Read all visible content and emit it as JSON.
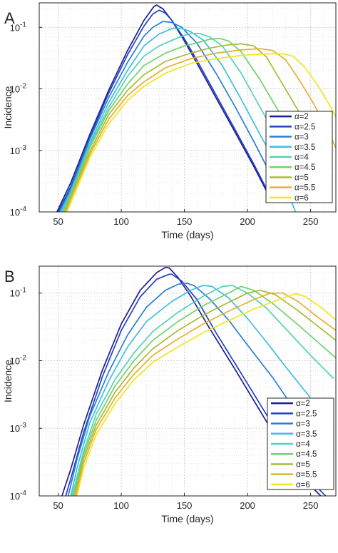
{
  "chart_data": [
    {
      "type": "line",
      "panel_label": "A",
      "xlabel": "Time (days)",
      "ylabel": "Incidence",
      "xlim": [
        35,
        270
      ],
      "ylim": [
        0.0001,
        0.25
      ],
      "yscale": "log",
      "grid": true,
      "minor_grid": true,
      "legend_position": "right",
      "x_ticks": [
        50,
        100,
        150,
        200,
        250
      ],
      "y_ticks": [
        {
          "value": 0.0001,
          "base": "10",
          "exp": "-4"
        },
        {
          "value": 0.001,
          "base": "10",
          "exp": "-3"
        },
        {
          "value": 0.01,
          "base": "10",
          "exp": "-2"
        },
        {
          "value": 0.1,
          "base": "10",
          "exp": "-1"
        }
      ],
      "series": [
        {
          "name": "α=2",
          "color": "#1f1f8f",
          "x": [
            49,
            60,
            75,
            90,
            105,
            118,
            126,
            128,
            133,
            140,
            150,
            160,
            175,
            190,
            205,
            215
          ],
          "y": [
            0.0001,
            0.0003,
            0.0018,
            0.0095,
            0.042,
            0.13,
            0.22,
            0.23,
            0.2,
            0.13,
            0.06,
            0.026,
            0.0072,
            0.002,
            0.00055,
            0.00022
          ]
        },
        {
          "name": "α=2.5",
          "color": "#2240c8",
          "x": [
            50,
            60,
            75,
            90,
            105,
            118,
            125,
            130,
            135,
            140,
            150,
            160,
            175,
            190,
            205,
            220
          ],
          "y": [
            0.0001,
            0.00026,
            0.0016,
            0.0085,
            0.036,
            0.105,
            0.165,
            0.19,
            0.17,
            0.13,
            0.065,
            0.029,
            0.008,
            0.0022,
            0.0006,
            0.00015
          ]
        },
        {
          "name": "α=3",
          "color": "#2a7ed8",
          "x": [
            51,
            60,
            75,
            90,
            105,
            118,
            125,
            133,
            140,
            148,
            160,
            175,
            190,
            205,
            220,
            228
          ],
          "y": [
            0.0001,
            0.00024,
            0.0015,
            0.0072,
            0.027,
            0.072,
            0.1,
            0.125,
            0.12,
            0.1,
            0.055,
            0.018,
            0.0052,
            0.0014,
            0.00035,
            0.0002
          ]
        },
        {
          "name": "α=3.5",
          "color": "#3fbde0",
          "x": [
            52,
            60,
            75,
            90,
            105,
            118,
            130,
            140,
            148,
            155,
            165,
            180,
            195,
            210,
            225,
            238
          ],
          "y": [
            0.0001,
            0.00022,
            0.0013,
            0.006,
            0.02,
            0.05,
            0.078,
            0.095,
            0.096,
            0.085,
            0.062,
            0.024,
            0.0068,
            0.0018,
            0.0005,
            0.0001
          ]
        },
        {
          "name": "α=4",
          "color": "#52d2b8",
          "x": [
            53,
            60,
            75,
            90,
            105,
            118,
            130,
            145,
            155,
            162,
            170,
            180,
            195,
            210,
            225,
            245
          ],
          "y": [
            0.0001,
            0.0002,
            0.0012,
            0.005,
            0.016,
            0.034,
            0.05,
            0.068,
            0.08,
            0.079,
            0.07,
            0.05,
            0.018,
            0.005,
            0.0014,
            0.0002
          ]
        },
        {
          "name": "α=4.5",
          "color": "#6ed36a",
          "x": [
            54,
            60,
            75,
            90,
            105,
            118,
            135,
            150,
            160,
            170,
            178,
            185,
            195,
            210,
            225,
            245,
            255
          ],
          "y": [
            0.0001,
            0.00019,
            0.0011,
            0.0044,
            0.012,
            0.024,
            0.038,
            0.05,
            0.056,
            0.064,
            0.066,
            0.06,
            0.04,
            0.014,
            0.0042,
            0.0007,
            0.0002
          ]
        },
        {
          "name": "α=5",
          "color": "#a9ba35",
          "x": [
            55,
            60,
            75,
            90,
            105,
            118,
            135,
            155,
            170,
            185,
            195,
            205,
            215,
            230,
            245,
            260
          ],
          "y": [
            0.0001,
            0.00018,
            0.00095,
            0.0038,
            0.0095,
            0.017,
            0.028,
            0.038,
            0.046,
            0.052,
            0.054,
            0.05,
            0.033,
            0.01,
            0.003,
            0.0006
          ]
        },
        {
          "name": "α=5.5",
          "color": "#e6b030",
          "x": [
            56,
            60,
            75,
            90,
            105,
            118,
            135,
            155,
            175,
            195,
            210,
            220,
            230,
            240,
            250,
            262,
            270
          ],
          "y": [
            0.0001,
            0.00016,
            0.00085,
            0.0032,
            0.0078,
            0.013,
            0.022,
            0.031,
            0.038,
            0.043,
            0.045,
            0.042,
            0.03,
            0.015,
            0.007,
            0.0025,
            0.0011
          ]
        },
        {
          "name": "α=6",
          "color": "#f2e61c",
          "x": [
            57,
            60,
            75,
            90,
            105,
            118,
            135,
            155,
            175,
            195,
            215,
            228,
            236,
            245,
            255,
            265,
            270
          ],
          "y": [
            0.0001,
            0.00014,
            0.00075,
            0.0027,
            0.0065,
            0.011,
            0.018,
            0.026,
            0.031,
            0.035,
            0.037,
            0.037,
            0.034,
            0.023,
            0.012,
            0.0055,
            0.0035
          ]
        }
      ]
    },
    {
      "type": "line",
      "panel_label": "B",
      "xlabel": "Time (days)",
      "ylabel": "Incidence",
      "xlim": [
        35,
        270
      ],
      "ylim": [
        0.0001,
        0.25
      ],
      "yscale": "log",
      "grid": true,
      "minor_grid": true,
      "legend_position": "bottom-right",
      "x_ticks": [
        50,
        100,
        150,
        200,
        250
      ],
      "y_ticks": [
        {
          "value": 0.0001,
          "base": "10",
          "exp": "-4"
        },
        {
          "value": 0.001,
          "base": "10",
          "exp": "-3"
        },
        {
          "value": 0.01,
          "base": "10",
          "exp": "-2"
        },
        {
          "value": 0.1,
          "base": "10",
          "exp": "-1"
        }
      ],
      "series": [
        {
          "name": "α=2",
          "color": "#1f1f8f",
          "x": [
            53,
            60,
            70,
            85,
            100,
            115,
            128,
            135,
            138,
            145,
            155,
            170,
            190,
            210,
            225,
            240,
            258
          ],
          "y": [
            0.0001,
            0.00025,
            0.0011,
            0.0072,
            0.035,
            0.11,
            0.2,
            0.24,
            0.235,
            0.17,
            0.09,
            0.03,
            0.0075,
            0.0018,
            0.00062,
            0.00022,
            0.0001
          ]
        },
        {
          "name": "α=2.5",
          "color": "#2240c8",
          "x": [
            56,
            60,
            70,
            85,
            100,
            115,
            128,
            138,
            140,
            148,
            160,
            175,
            195,
            215,
            230,
            248,
            262
          ],
          "y": [
            0.0001,
            0.00018,
            0.00085,
            0.0058,
            0.028,
            0.088,
            0.16,
            0.19,
            0.19,
            0.15,
            0.08,
            0.026,
            0.0065,
            0.0016,
            0.00055,
            0.00018,
            0.0001
          ]
        },
        {
          "name": "α=3",
          "color": "#2a7ed8",
          "x": [
            58,
            65,
            75,
            90,
            105,
            120,
            135,
            145,
            152,
            158,
            170,
            185,
            200,
            220,
            240,
            255
          ],
          "y": [
            0.0001,
            0.00035,
            0.0015,
            0.0068,
            0.024,
            0.062,
            0.11,
            0.135,
            0.14,
            0.128,
            0.082,
            0.04,
            0.017,
            0.0056,
            0.0016,
            0.0005
          ]
        },
        {
          "name": "α=3.5",
          "color": "#3fbde0",
          "x": [
            60,
            65,
            75,
            90,
            105,
            120,
            140,
            155,
            165,
            172,
            185,
            200,
            215,
            230,
            250,
            268
          ],
          "y": [
            0.0001,
            0.00026,
            0.0012,
            0.005,
            0.016,
            0.038,
            0.075,
            0.11,
            0.13,
            0.125,
            0.085,
            0.042,
            0.019,
            0.0082,
            0.0028,
            0.0012
          ]
        },
        {
          "name": "α=4",
          "color": "#52d2b8",
          "x": [
            61,
            70,
            80,
            95,
            110,
            125,
            145,
            165,
            180,
            188,
            200,
            215,
            230,
            250,
            268
          ],
          "y": [
            0.0001,
            0.00045,
            0.0016,
            0.0052,
            0.013,
            0.027,
            0.052,
            0.09,
            0.125,
            0.13,
            0.1,
            0.06,
            0.03,
            0.012,
            0.0055
          ]
        },
        {
          "name": "α=4.5",
          "color": "#6ed36a",
          "x": [
            62,
            70,
            80,
            95,
            110,
            125,
            145,
            165,
            185,
            195,
            205,
            220,
            240,
            260,
            270
          ],
          "y": [
            0.0001,
            0.0004,
            0.0013,
            0.0042,
            0.01,
            0.02,
            0.038,
            0.065,
            0.1,
            0.125,
            0.11,
            0.07,
            0.034,
            0.016,
            0.011
          ]
        },
        {
          "name": "α=5",
          "color": "#a9ba35",
          "x": [
            63,
            70,
            80,
            95,
            110,
            125,
            145,
            165,
            185,
            200,
            210,
            222,
            240,
            260,
            270
          ],
          "y": [
            0.0001,
            0.00035,
            0.0011,
            0.0034,
            0.0078,
            0.015,
            0.028,
            0.047,
            0.073,
            0.1,
            0.11,
            0.095,
            0.055,
            0.028,
            0.02
          ]
        },
        {
          "name": "α=5.5",
          "color": "#e6b030",
          "x": [
            64,
            70,
            80,
            95,
            110,
            125,
            145,
            165,
            185,
            205,
            218,
            228,
            240,
            255,
            270
          ],
          "y": [
            0.0001,
            0.0003,
            0.00095,
            0.0028,
            0.0063,
            0.012,
            0.021,
            0.035,
            0.054,
            0.08,
            0.1,
            0.1,
            0.075,
            0.045,
            0.028
          ]
        },
        {
          "name": "α=6",
          "color": "#f2e61c",
          "x": [
            65,
            70,
            80,
            95,
            110,
            125,
            145,
            165,
            185,
            205,
            225,
            238,
            245,
            258,
            270
          ],
          "y": [
            0.0001,
            0.00025,
            0.0008,
            0.0023,
            0.0052,
            0.0095,
            0.016,
            0.026,
            0.039,
            0.058,
            0.08,
            0.098,
            0.09,
            0.062,
            0.04
          ]
        }
      ]
    }
  ]
}
